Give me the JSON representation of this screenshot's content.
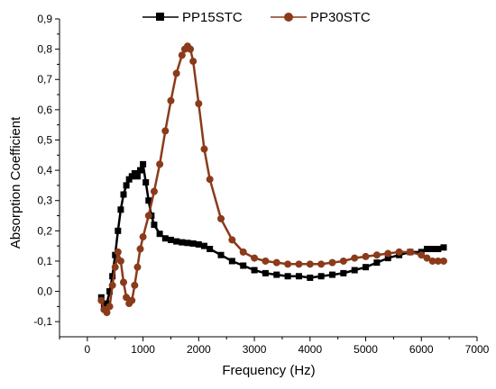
{
  "chart_data": {
    "type": "line",
    "xlabel": "Frequency (Hz)",
    "ylabel": "Absorption Coefficient",
    "xlim": [
      -500,
      7000
    ],
    "ylim": [
      -0.15,
      0.9
    ],
    "x_ticks": [
      0,
      1000,
      2000,
      3000,
      4000,
      5000,
      6000,
      7000
    ],
    "x_tick_labels": [
      "0",
      "1000",
      "2000",
      "3000",
      "4000",
      "5000",
      "6000",
      "7000"
    ],
    "y_ticks": [
      -0.1,
      0.0,
      0.1,
      0.2,
      0.3,
      0.4,
      0.5,
      0.6,
      0.7,
      0.8,
      0.9
    ],
    "y_tick_labels": [
      "-0,1",
      "0,0",
      "0,1",
      "0,2",
      "0,3",
      "0,4",
      "0,5",
      "0,6",
      "0,7",
      "0,8",
      "0,9"
    ],
    "legend_position": "top",
    "series": [
      {
        "name": "PP15STC",
        "color": "#000000",
        "marker": "square",
        "x": [
          250,
          300,
          350,
          400,
          450,
          500,
          550,
          600,
          650,
          700,
          750,
          800,
          850,
          900,
          950,
          1000,
          1050,
          1100,
          1150,
          1200,
          1300,
          1400,
          1500,
          1600,
          1700,
          1800,
          1900,
          2000,
          2100,
          2200,
          2400,
          2600,
          2800,
          3000,
          3200,
          3400,
          3600,
          3800,
          4000,
          4200,
          4400,
          4600,
          4800,
          5000,
          5200,
          5400,
          5600,
          5800,
          6000,
          6100,
          6200,
          6300,
          6400
        ],
        "y": [
          -0.02,
          -0.05,
          -0.04,
          0.0,
          0.05,
          0.12,
          0.2,
          0.27,
          0.32,
          0.35,
          0.37,
          0.38,
          0.39,
          0.38,
          0.4,
          0.42,
          0.36,
          0.3,
          0.25,
          0.22,
          0.19,
          0.175,
          0.17,
          0.165,
          0.162,
          0.16,
          0.158,
          0.155,
          0.15,
          0.14,
          0.12,
          0.1,
          0.085,
          0.07,
          0.06,
          0.055,
          0.05,
          0.05,
          0.045,
          0.05,
          0.055,
          0.06,
          0.07,
          0.08,
          0.095,
          0.11,
          0.12,
          0.13,
          0.13,
          0.14,
          0.14,
          0.14,
          0.145
        ]
      },
      {
        "name": "PP30STC",
        "color": "#8b3a1a",
        "marker": "circle",
        "x": [
          250,
          300,
          350,
          400,
          450,
          500,
          550,
          600,
          650,
          700,
          750,
          800,
          850,
          900,
          950,
          1000,
          1100,
          1200,
          1300,
          1400,
          1500,
          1600,
          1700,
          1750,
          1800,
          1850,
          1900,
          2000,
          2100,
          2200,
          2400,
          2600,
          2800,
          3000,
          3200,
          3400,
          3600,
          3800,
          4000,
          4200,
          4400,
          4600,
          4800,
          5000,
          5200,
          5400,
          5600,
          5800,
          6000,
          6100,
          6200,
          6300,
          6400
        ],
        "y": [
          -0.03,
          -0.06,
          -0.07,
          -0.05,
          0.02,
          0.08,
          0.13,
          0.1,
          0.03,
          -0.02,
          -0.04,
          -0.03,
          0.02,
          0.08,
          0.14,
          0.18,
          0.25,
          0.33,
          0.42,
          0.53,
          0.63,
          0.72,
          0.78,
          0.8,
          0.81,
          0.8,
          0.76,
          0.62,
          0.47,
          0.37,
          0.24,
          0.17,
          0.13,
          0.11,
          0.1,
          0.095,
          0.09,
          0.09,
          0.09,
          0.09,
          0.095,
          0.1,
          0.11,
          0.115,
          0.12,
          0.125,
          0.13,
          0.13,
          0.12,
          0.11,
          0.1,
          0.1,
          0.1
        ]
      }
    ]
  }
}
